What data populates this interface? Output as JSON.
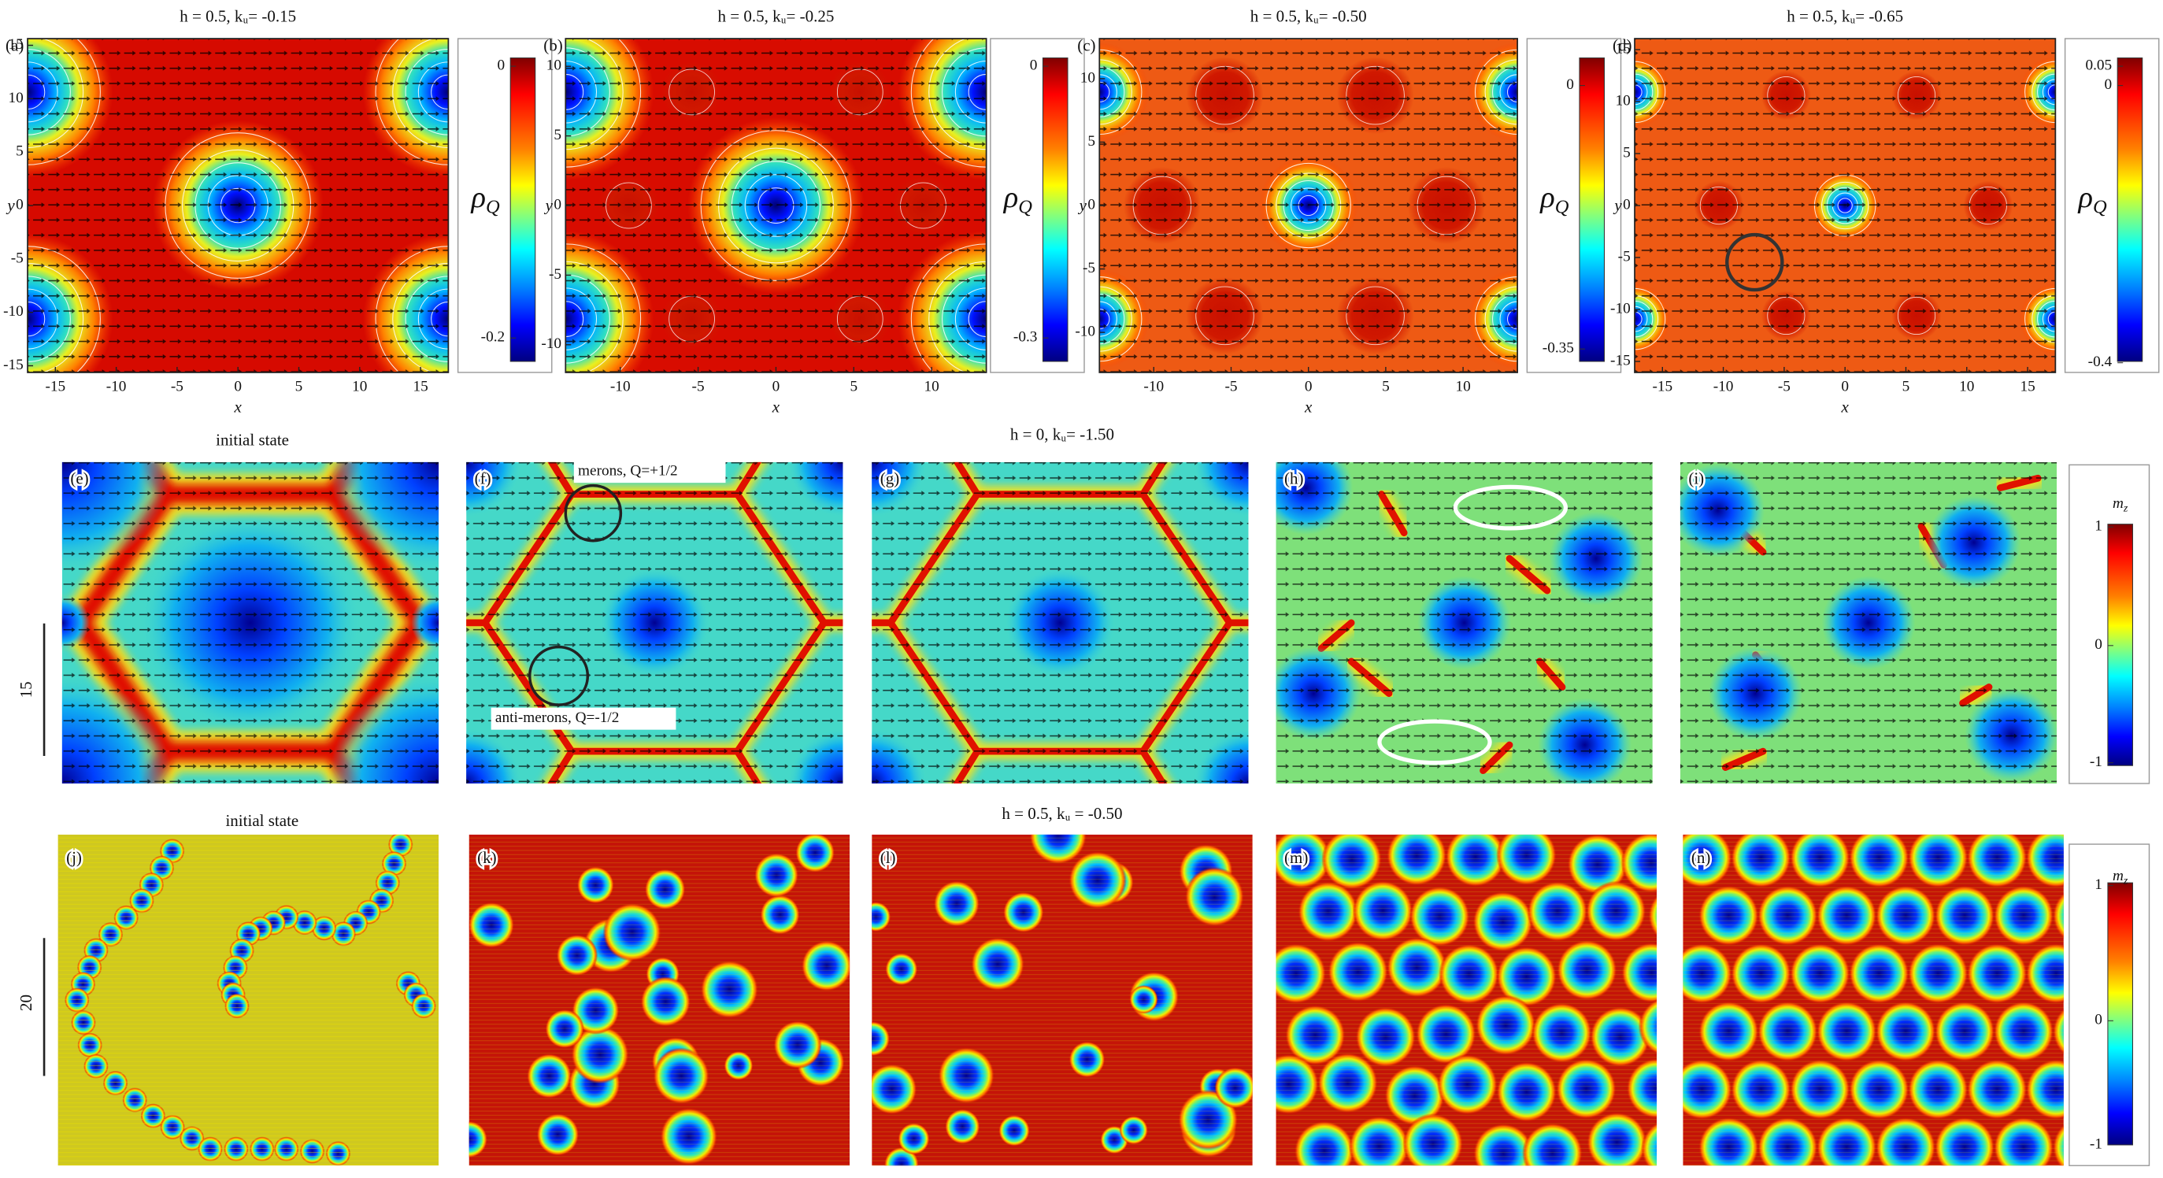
{
  "row1": {
    "panels": [
      {
        "label": "(a)",
        "title": "h = 0.5, kᵤ= -0.15",
        "xticks": [
          -15,
          -10,
          -5,
          0,
          5,
          10,
          15
        ],
        "yticks": [
          15,
          10,
          5,
          0,
          -5,
          -10,
          -15
        ],
        "xlabel": "x",
        "ylabel": "y",
        "colorbar": {
          "symbol": "ρ",
          "sub": "Q",
          "ticks": [
            0,
            -0.2
          ]
        }
      },
      {
        "label": "(b)",
        "title": "h = 0.5, kᵤ= -0.25",
        "xticks": [
          -10,
          -5,
          0,
          5,
          10
        ],
        "yticks": [
          10,
          5,
          0,
          -5,
          -10
        ],
        "xlabel": "x",
        "ylabel": "y",
        "colorbar": {
          "symbol": "ρ",
          "sub": "Q",
          "ticks": [
            0,
            -0.3
          ]
        }
      },
      {
        "label": "(c)",
        "title": "h = 0.5, kᵤ= -0.50",
        "xticks": [
          -10,
          -5,
          0,
          5,
          10
        ],
        "yticks": [
          10,
          5,
          0,
          -5,
          -10
        ],
        "xlabel": "x",
        "ylabel": "y",
        "colorbar": {
          "symbol": "ρ",
          "sub": "Q",
          "ticks": [
            0,
            -0.35
          ]
        }
      },
      {
        "label": "(d)",
        "title": "h = 0.5, kᵤ= -0.65",
        "xticks": [
          -15,
          -10,
          -5,
          0,
          5,
          10,
          15
        ],
        "yticks": [
          15,
          10,
          5,
          0,
          -5,
          -10,
          -15
        ],
        "xlabel": "x",
        "ylabel": "y",
        "colorbar": {
          "symbol": "ρ",
          "sub": "Q",
          "ticks": [
            0.05,
            0,
            -0.4
          ]
        }
      }
    ]
  },
  "row2": {
    "title": "h = 0, kᵤ= -1.50",
    "initial": "initial state",
    "scale": "15",
    "panels": [
      "(e)",
      "(f)",
      "(g)",
      "(h)",
      "(i)"
    ],
    "annotations": [
      "merons, Q=+1/2",
      "anti-merons, Q=-1/2"
    ],
    "colorbar": {
      "symbol": "m",
      "sub": "z",
      "ticks": [
        1,
        0,
        -1
      ]
    }
  },
  "row3": {
    "title": "h = 0.5, kᵤ = -0.50",
    "initial": "initial state",
    "scale": "20",
    "panels": [
      "(j)",
      "(k)",
      "(l)",
      "(m)",
      "(n)"
    ],
    "colorbar": {
      "symbol": "m",
      "sub": "z",
      "ticks": [
        1,
        0,
        -1
      ]
    }
  }
}
